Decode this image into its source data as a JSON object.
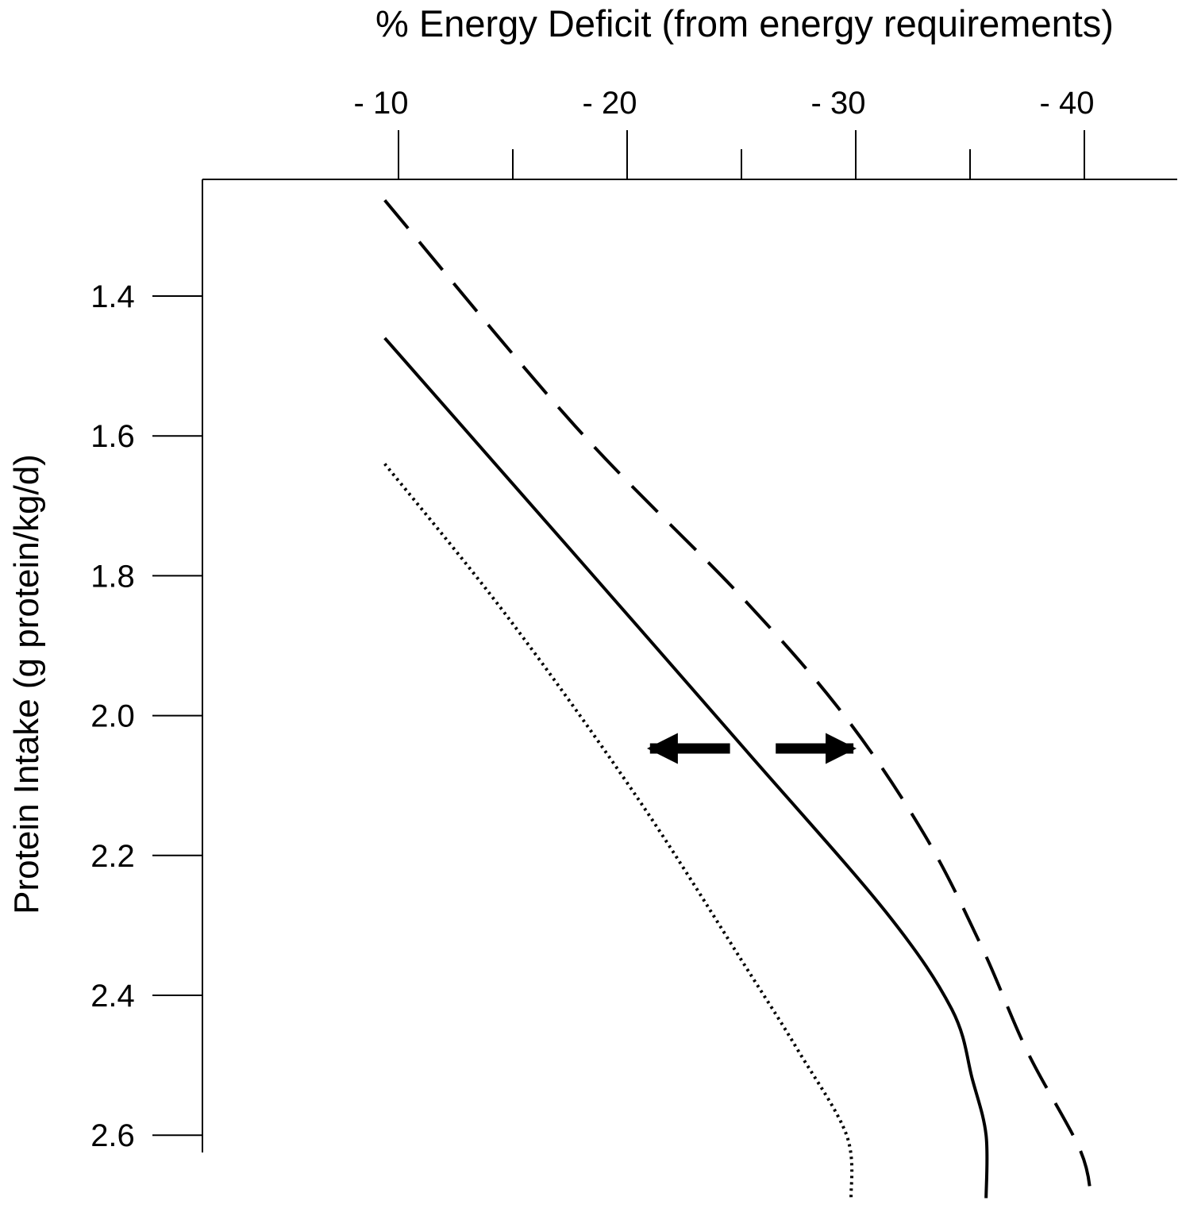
{
  "chart_data": {
    "type": "line",
    "title": "% Energy Deficit (from energy requirements)",
    "xlabel": "% Energy Deficit (from energy requirements)",
    "ylabel": "Protein Intake  (g protein/kg/d)",
    "x_axis_position": "top",
    "y_axis_inverted": true,
    "x_ticks": [
      {
        "value": -10,
        "label": "- 10"
      },
      {
        "value": -20,
        "label": "- 20"
      },
      {
        "value": -30,
        "label": "- 30"
      },
      {
        "value": -40,
        "label": "- 40"
      }
    ],
    "x_minor_ticks": [
      -15,
      -25,
      -35
    ],
    "y_ticks": [
      {
        "value": 1.4,
        "label": "1.4"
      },
      {
        "value": 1.6,
        "label": "1.6"
      },
      {
        "value": 1.8,
        "label": "1.8"
      },
      {
        "value": 2.0,
        "label": "2.0"
      },
      {
        "value": 2.2,
        "label": "2.2"
      },
      {
        "value": 2.4,
        "label": "2.4"
      },
      {
        "value": 2.6,
        "label": "2.6"
      }
    ],
    "xlim": [
      -1.5,
      -44
    ],
    "ylim": [
      1.23,
      2.69
    ],
    "grid": false,
    "series": [
      {
        "style": "dashed",
        "points": [
          [
            -9.4,
            1.263
          ],
          [
            -17.7,
            1.585
          ],
          [
            -25.0,
            1.83
          ],
          [
            -29.5,
            2.0
          ],
          [
            -33.0,
            2.17
          ],
          [
            -35.5,
            2.33
          ],
          [
            -37.5,
            2.48
          ],
          [
            -39.8,
            2.62
          ],
          [
            -40.3,
            2.69
          ]
        ]
      },
      {
        "style": "solid",
        "points": [
          [
            -9.4,
            1.46
          ],
          [
            -14.5,
            1.65
          ],
          [
            -20.4,
            1.87
          ],
          [
            -25.2,
            2.05
          ],
          [
            -31.3,
            2.28
          ],
          [
            -34.2,
            2.42
          ],
          [
            -35.1,
            2.52
          ],
          [
            -35.7,
            2.6
          ],
          [
            -35.7,
            2.69
          ]
        ]
      },
      {
        "style": "dotted",
        "points": [
          [
            -9.4,
            1.64
          ],
          [
            -14.8,
            1.86
          ],
          [
            -20.5,
            2.12
          ],
          [
            -25.2,
            2.36
          ],
          [
            -27.5,
            2.48
          ],
          [
            -29.6,
            2.6
          ],
          [
            -29.8,
            2.69
          ]
        ]
      }
    ],
    "annotations": [
      {
        "type": "arrow",
        "direction": "left",
        "from_x": -24.5,
        "to_x": -21.0,
        "y": 2.047
      },
      {
        "type": "arrow",
        "direction": "right",
        "from_x": -26.5,
        "to_x": -29.9,
        "y": 2.047
      }
    ],
    "colors": {
      "ink": "#000000",
      "background": "#ffffff"
    }
  }
}
